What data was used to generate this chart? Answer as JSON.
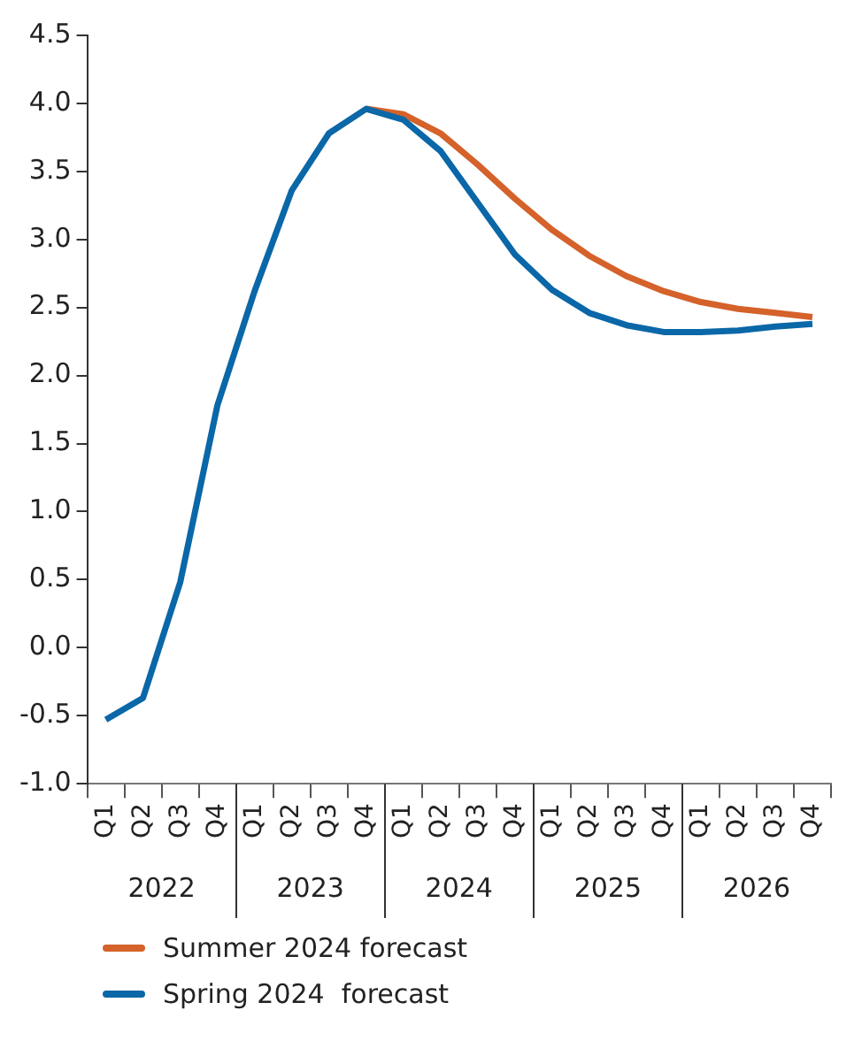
{
  "chart_data": {
    "type": "line",
    "categories": [
      "Q1",
      "Q2",
      "Q3",
      "Q4",
      "Q1",
      "Q2",
      "Q3",
      "Q4",
      "Q1",
      "Q2",
      "Q3",
      "Q4",
      "Q1",
      "Q2",
      "Q3",
      "Q4",
      "Q1",
      "Q2",
      "Q3",
      "Q4"
    ],
    "annotations": [
      "2022",
      "2023",
      "2024",
      "2025",
      "2026"
    ],
    "series": [
      {
        "name": "Summer 2024 forecast",
        "color": "#d4622a",
        "values": [
          null,
          null,
          null,
          null,
          null,
          null,
          null,
          3.96,
          3.92,
          3.78,
          3.55,
          3.3,
          3.07,
          2.88,
          2.73,
          2.62,
          2.54,
          2.49,
          2.46,
          2.43
        ]
      },
      {
        "name": "Spring 2024  forecast",
        "color": "#0a67a8",
        "values": [
          -0.53,
          -0.37,
          0.48,
          1.78,
          2.62,
          3.36,
          3.78,
          3.96,
          3.88,
          3.65,
          3.27,
          2.89,
          2.63,
          2.46,
          2.37,
          2.32,
          2.32,
          2.33,
          2.36,
          2.38
        ]
      }
    ],
    "ylim": [
      -1,
      4.5
    ],
    "yticks": [
      {
        "value": -1,
        "label": "-1.0"
      },
      -0.5,
      {
        "value": 0,
        "label": "0.0"
      },
      0.5,
      {
        "value": 1,
        "label": "1.0"
      },
      1.5,
      {
        "value": 2,
        "label": "2.0"
      },
      2.5,
      {
        "value": 3,
        "label": "3.0"
      },
      3.5,
      {
        "value": 4,
        "label": "4.0"
      },
      4.5
    ],
    "grid": false,
    "legend": "bottom left",
    "marker": "none",
    "line_style": "solid"
  }
}
